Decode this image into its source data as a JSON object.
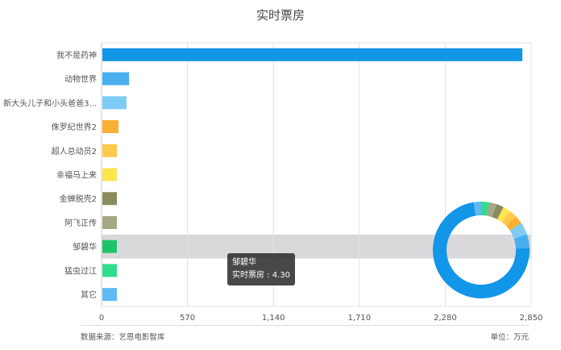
{
  "chart_data": {
    "type": "bar",
    "orientation": "horizontal",
    "title": "实时票房",
    "categories": [
      "我不是药神",
      "动物世界",
      "新大头儿子和小头爸爸3...",
      "侏罗纪世界2",
      "超人总动员2",
      "幸福马上来",
      "金蝉脱壳2",
      "阿飞正传",
      "邹碧华",
      "猛虫过江",
      "其它"
    ],
    "values": [
      2786,
      177,
      160,
      107,
      96,
      96,
      96,
      96,
      4.3,
      96,
      96
    ],
    "colors": [
      "#1296e8",
      "#47aef0",
      "#7ecbf6",
      "#fbb034",
      "#fdc94c",
      "#fde54f",
      "#8a8b5e",
      "#a6a786",
      "#1ec46b",
      "#2fdc8a",
      "#5fb9f2"
    ],
    "xlim": [
      0,
      2850
    ],
    "xticks": [
      "0",
      "570",
      "1,140",
      "1,710",
      "2,280",
      "2,850"
    ],
    "xtick_values": [
      0,
      570,
      1140,
      1710,
      2280,
      2850
    ],
    "grid": true,
    "highlighted_category": "邹碧华",
    "inset": {
      "type": "donut",
      "uses": "values"
    }
  },
  "tooltip": {
    "title": "邹碧华",
    "label": "实时票房",
    "value": "4.30"
  },
  "footer": {
    "source": "数据来源：艺恩电影智库",
    "unit": "单位：万元"
  }
}
